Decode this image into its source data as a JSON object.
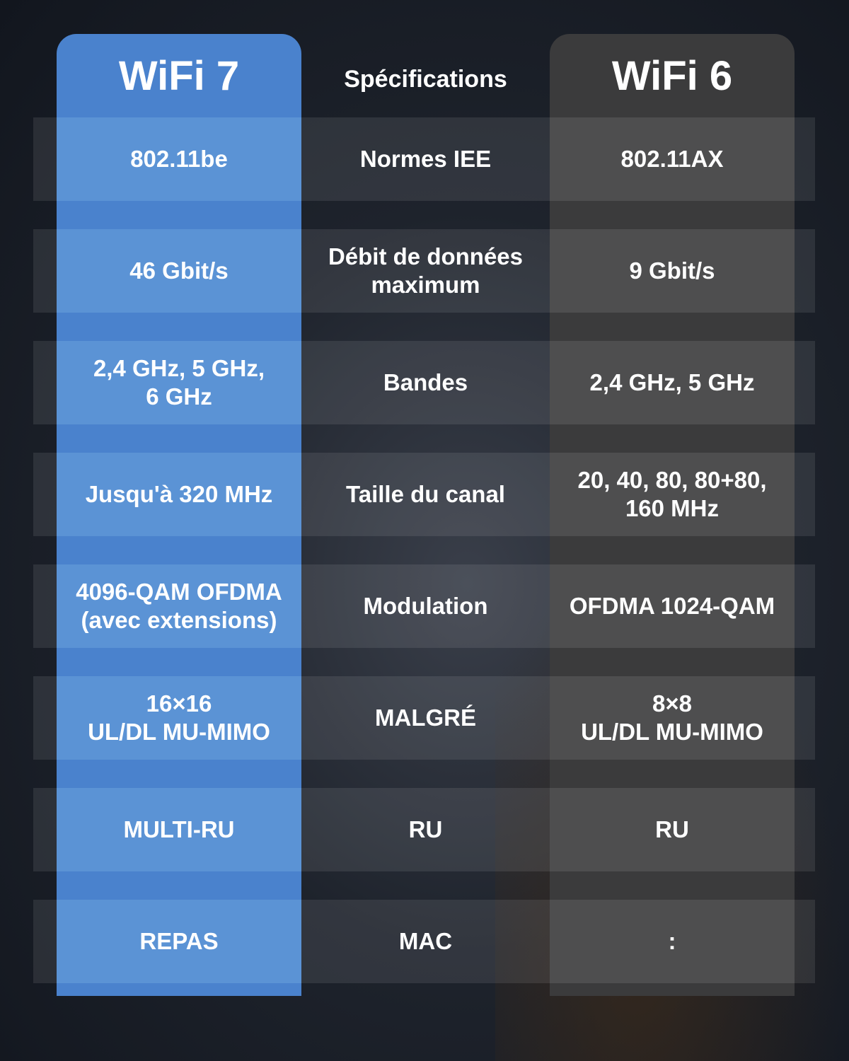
{
  "header": {
    "left": "WiFi 7",
    "middle": "Spécifications",
    "right": "WiFi 6"
  },
  "colors": {
    "wifi7": "#4a82cd",
    "wifi6": "#3b3b3c"
  },
  "rows": [
    {
      "wifi7": "802.11be",
      "spec": "Normes IEE",
      "wifi6": "802.11AX"
    },
    {
      "wifi7": "46 Gbit/s",
      "spec": "Débit de données\nmaximum",
      "wifi6": "9 Gbit/s"
    },
    {
      "wifi7": "2,4 GHz, 5 GHz,\n6 GHz",
      "spec": "Bandes",
      "wifi6": "2,4 GHz, 5 GHz"
    },
    {
      "wifi7": "Jusqu'à 320 MHz",
      "spec": "Taille du canal",
      "wifi6": "20, 40, 80, 80+80,\n160 MHz"
    },
    {
      "wifi7": "4096-QAM OFDMA\n(avec extensions)",
      "spec": "Modulation",
      "wifi6": "OFDMA 1024-QAM"
    },
    {
      "wifi7": "16×16\nUL/DL MU-MIMO",
      "spec": "MALGRÉ",
      "wifi6": "8×8\nUL/DL MU-MIMO"
    },
    {
      "wifi7": "MULTI-RU",
      "spec": "RU",
      "wifi6": "RU"
    },
    {
      "wifi7": "REPAS",
      "spec": "MAC",
      "wifi6": ":"
    }
  ]
}
